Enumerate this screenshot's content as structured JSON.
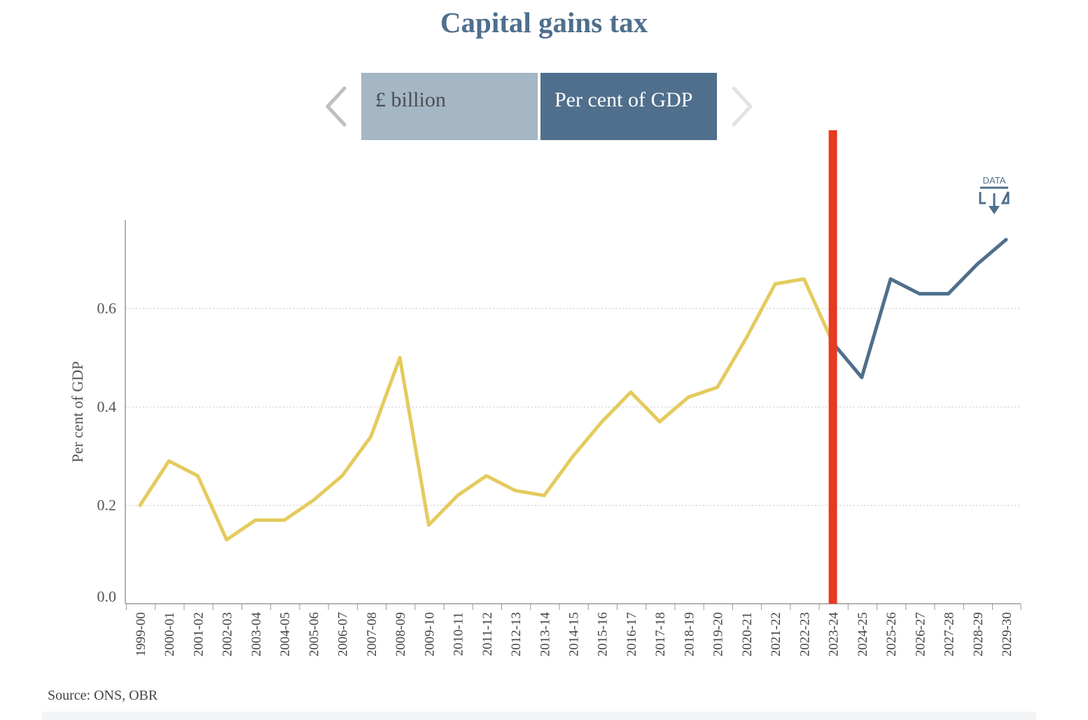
{
  "page": {
    "title": "Capital gains tax",
    "source": "Source: ONS, OBR",
    "data_button_label": "DATA"
  },
  "toggles": [
    {
      "label": "£ billion",
      "active": false
    },
    {
      "label": "Per cent of GDP",
      "active": true
    }
  ],
  "icons": {
    "left": "chevron-left-icon",
    "right": "chevron-right-icon",
    "download": "download-icon"
  },
  "colors": {
    "title": "#4f6f8c",
    "outturn": "#e4cb5e",
    "forecast": "#4f6f8c",
    "marker": "#e63a22",
    "toggle_active": "#4f6f8c",
    "toggle_inactive": "#a5b6c4"
  },
  "chart_data": {
    "type": "line",
    "title": "Capital gains tax",
    "ylabel": "Per cent of GDP",
    "xlabel": "",
    "ylim": [
      0,
      0.78
    ],
    "yticks": [
      0.0,
      0.2,
      0.4,
      0.6
    ],
    "grid": "horizontal dotted",
    "legend": "none",
    "marker_at": "2023-24",
    "categories": [
      "1999-00",
      "2000-01",
      "2001-02",
      "2002-03",
      "2003-04",
      "2004-05",
      "2005-06",
      "2006-07",
      "2007-08",
      "2008-09",
      "2009-10",
      "2010-11",
      "2011-12",
      "2012-13",
      "2013-14",
      "2014-15",
      "2015-16",
      "2016-17",
      "2017-18",
      "2018-19",
      "2019-20",
      "2020-21",
      "2021-22",
      "2022-23",
      "2023-24",
      "2024-25",
      "2025-26",
      "2026-27",
      "2027-28",
      "2028-29",
      "2029-30"
    ],
    "series": [
      {
        "values": [
          0.2,
          0.29,
          0.26,
          0.13,
          0.17,
          0.17,
          0.21,
          0.26,
          0.34,
          0.5,
          0.16,
          0.22,
          0.26,
          0.23,
          0.22,
          0.3,
          0.37,
          0.43,
          0.37,
          0.42,
          0.44,
          0.54,
          0.65,
          0.66,
          0.53,
          null,
          null,
          null,
          null,
          null,
          null
        ]
      },
      {
        "values": [
          null,
          null,
          null,
          null,
          null,
          null,
          null,
          null,
          null,
          null,
          null,
          null,
          null,
          null,
          null,
          null,
          null,
          null,
          null,
          null,
          null,
          null,
          null,
          null,
          0.53,
          0.46,
          0.66,
          0.63,
          0.63,
          0.69,
          0.74
        ]
      }
    ]
  }
}
